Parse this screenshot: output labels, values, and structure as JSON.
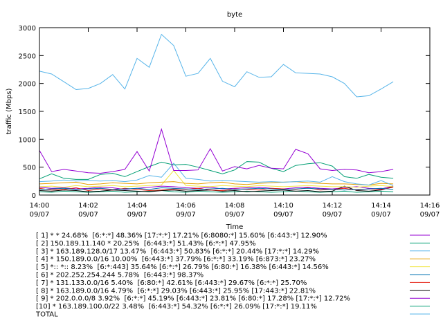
{
  "chart_data": {
    "type": "line",
    "title": "byte",
    "xlabel": "Time",
    "ylabel": "traffic (Mbps)",
    "xlim": [
      0,
      16
    ],
    "xticks": [
      {
        "value": 0,
        "label": "14:00",
        "sublabel": "09/07"
      },
      {
        "value": 2,
        "label": "14:02",
        "sublabel": "09/07"
      },
      {
        "value": 4,
        "label": "14:04",
        "sublabel": "09/07"
      },
      {
        "value": 6,
        "label": "14:06",
        "sublabel": "09/07"
      },
      {
        "value": 8,
        "label": "14:08",
        "sublabel": "09/07"
      },
      {
        "value": 10,
        "label": "14:10",
        "sublabel": "09/07"
      },
      {
        "value": 12,
        "label": "14:12",
        "sublabel": "09/07"
      },
      {
        "value": 14,
        "label": "14:14",
        "sublabel": "09/07"
      },
      {
        "value": 16,
        "label": "14:16",
        "sublabel": "09/07"
      }
    ],
    "ylim": [
      0,
      3000
    ],
    "yticks": [
      0,
      500,
      1000,
      1500,
      2000,
      2500,
      3000
    ],
    "x": [
      0,
      0.5,
      1,
      1.5,
      2,
      2.5,
      3,
      3.5,
      4,
      4.5,
      5,
      5.5,
      6,
      6.5,
      7,
      7.5,
      8,
      8.5,
      9,
      9.5,
      10,
      10.5,
      11,
      11.5,
      12,
      12.5,
      13,
      13.5,
      14,
      14.5
    ],
    "series": [
      {
        "name": "[ 1] * * 24.68%  [6:*:*] 48.36% [17:*:*] 17.21% [6:8080:*] 15.60% [6:443:*] 12.90%",
        "color": "#9400d3",
        "values": [
          800,
          420,
          460,
          430,
          400,
          390,
          420,
          460,
          780,
          430,
          1180,
          440,
          440,
          450,
          830,
          430,
          510,
          470,
          530,
          480,
          470,
          820,
          740,
          470,
          440,
          460,
          450,
          400,
          420,
          460
        ]
      },
      {
        "name": "[ 2] 150.189.11.140 * 20.25%  [6:443:*] 51.43% [6:*:*] 47.95%",
        "color": "#009e73",
        "values": [
          290,
          380,
          300,
          280,
          280,
          370,
          390,
          330,
          420,
          510,
          590,
          540,
          550,
          500,
          440,
          380,
          450,
          600,
          590,
          480,
          420,
          530,
          560,
          580,
          520,
          330,
          300,
          370,
          320,
          300
        ]
      },
      {
        "name": "[ 3] * 163.189.128.0/17 13.47%  [6:443:*] 50.83% [6:*:*] 20.44% [17:*:*] 14.29%",
        "color": "#56b4e9",
        "values": [
          240,
          250,
          270,
          250,
          260,
          250,
          260,
          240,
          270,
          350,
          320,
          570,
          300,
          280,
          250,
          260,
          250,
          240,
          230,
          240,
          230,
          240,
          250,
          230,
          330,
          240,
          200,
          180,
          260,
          170
        ]
      },
      {
        "name": "[ 4] * 150.189.0.0/16 10.00%  [6:443:*] 37.79% [6:*:*] 33.19% [6:873:*] 23.27%",
        "color": "#e69f00",
        "values": [
          200,
          210,
          220,
          230,
          190,
          200,
          220,
          210,
          200,
          220,
          230,
          240,
          210,
          200,
          220,
          230,
          200,
          190,
          210,
          220,
          230,
          240,
          220,
          210,
          200,
          200,
          190,
          180,
          210,
          200
        ]
      },
      {
        "name": "[ 5] *:: *:: 8.23%  [6:*:443] 35.64% [6:*:*] 26.79% [6:80:*] 16.38% [6:443:*] 14.56%",
        "color": "#f0e442",
        "values": [
          150,
          160,
          140,
          170,
          150,
          160,
          170,
          150,
          160,
          170,
          180,
          440,
          170,
          160,
          150,
          170,
          160,
          150,
          170,
          160,
          150,
          160,
          170,
          160,
          150,
          150,
          140,
          160,
          170,
          150
        ]
      },
      {
        "name": "[ 6] * 202.252.254.244 5.78%  [6:443:*] 98.37%",
        "color": "#0072b2",
        "values": [
          100,
          110,
          120,
          100,
          110,
          120,
          100,
          110,
          120,
          100,
          130,
          120,
          110,
          100,
          110,
          120,
          100,
          110,
          120,
          110,
          100,
          110,
          120,
          110,
          100,
          90,
          100,
          110,
          120,
          100
        ]
      },
      {
        "name": "[ 7] * 131.133.0.0/16 5.40%  [6:80:*] 42.61% [6:443:*] 29.67% [6:*:*] 25.70%",
        "color": "#e51e10",
        "values": [
          120,
          90,
          100,
          130,
          80,
          110,
          90,
          120,
          100,
          80,
          90,
          110,
          100,
          120,
          90,
          80,
          110,
          100,
          90,
          120,
          110,
          100,
          130,
          90,
          100,
          120,
          90,
          110,
          100,
          140
        ]
      },
      {
        "name": "[ 8] * 163.189.0.0/16 4.79%  [6:*:*] 29.03% [6:443:*] 25.95% [17:443:*] 22.81%",
        "color": "#000000",
        "values": [
          80,
          70,
          90,
          80,
          60,
          70,
          90,
          80,
          70,
          60,
          80,
          90,
          70,
          80,
          90,
          70,
          80,
          60,
          70,
          80,
          90,
          70,
          80,
          60,
          70,
          160,
          80,
          70,
          90,
          150
        ]
      },
      {
        "name": "[ 9] * 202.0.0.0/8 3.92%  [6:*:*] 45.19% [6:443:*] 23.81% [6:80:*] 17.28% [17:*:*] 12.72%",
        "color": "#9400d3",
        "values": [
          140,
          120,
          130,
          110,
          120,
          140,
          130,
          100,
          120,
          140,
          160,
          150,
          130,
          120,
          140,
          110,
          120,
          130,
          140,
          120,
          110,
          130,
          140,
          120,
          110,
          130,
          150,
          120,
          110,
          160
        ]
      },
      {
        "name": "[10] * 163.189.100.0/22 3.48%  [6:443:*] 54.32% [6:*:*] 26.09% [17:*:*] 19.11%",
        "color": "#009e73",
        "values": [
          60,
          50,
          70,
          60,
          50,
          60,
          70,
          50,
          60,
          70,
          80,
          60,
          50,
          70,
          60,
          50,
          60,
          70,
          60,
          50,
          60,
          70,
          60,
          50,
          60,
          70,
          50,
          60,
          70,
          60
        ]
      },
      {
        "name": "TOTAL",
        "color": "#56b4e9",
        "values": [
          2220,
          2170,
          2030,
          1890,
          1910,
          2000,
          2160,
          1900,
          2450,
          2290,
          2880,
          2680,
          2130,
          2180,
          2450,
          2040,
          1940,
          2210,
          2110,
          2120,
          2340,
          2190,
          2180,
          2170,
          2120,
          2000,
          1760,
          1780,
          1900,
          2030
        ]
      }
    ]
  }
}
